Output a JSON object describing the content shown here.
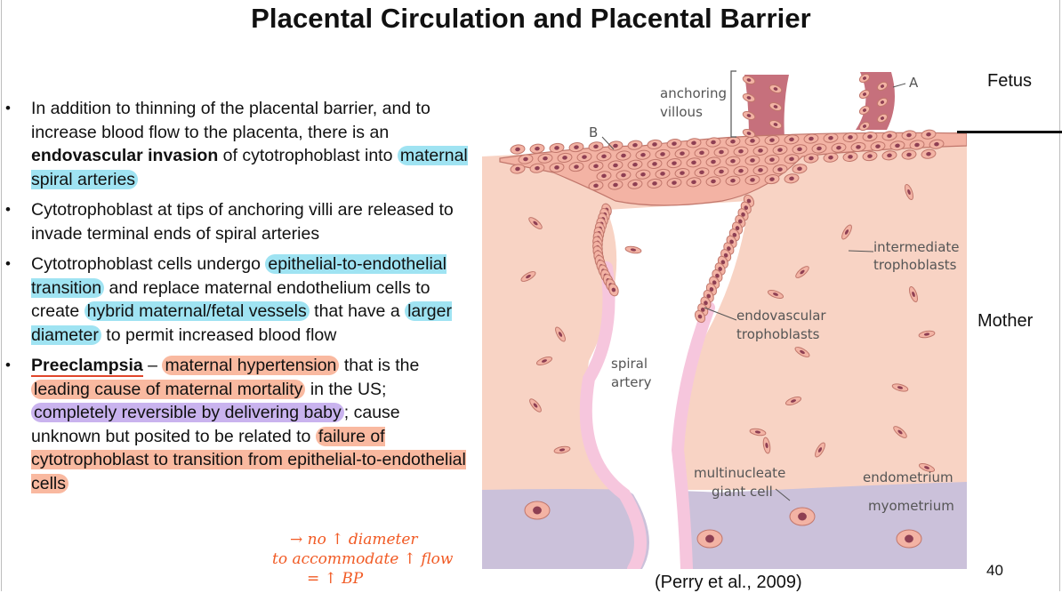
{
  "title": "Placental Circulation and Placental Barrier",
  "bullets": {
    "b1": {
      "t1": "In addition to thinning of the placental barrier, and to increase blood flow to the placenta, there is an ",
      "bold": "endovascular invasion",
      "t2": " of cytotrophoblast into ",
      "hl1": "maternal spiral arteries"
    },
    "b2": {
      "text": "Cytotrophoblast at tips of anchoring villi are released to invade terminal ends of spiral arteries"
    },
    "b3": {
      "t1": "Cytotrophoblast cells undergo ",
      "hl1": "epithelial-to-endothelial transition",
      "t2": " and replace maternal endothelium cells to create ",
      "hl2": "hybrid maternal/fetal vessels",
      "t3": " that have a ",
      "hl3": "larger diameter",
      "t4": " to permit increased blood flow"
    },
    "b4": {
      "term": "Preeclampsia",
      "t1": " – ",
      "hl1": "maternal hypertension",
      "t2": " that is the ",
      "hl2": "leading cause of maternal mortality",
      "t3": " in the US; ",
      "hl3": "completely reversible by delivering baby",
      "t4": "; cause unknown but posited to be related to ",
      "hl4": "failure of cytotrophoblast to transition from epithelial-to-endothelial cells"
    }
  },
  "handwriting": {
    "line1": "→ no ↑ diameter",
    "line2": "to accommodate ↑ flow",
    "line3": "= ↑ BP"
  },
  "figure": {
    "labels": {
      "anchoring": "anchoring",
      "villous": "villous",
      "a": "A",
      "b": "B",
      "intermediate": "intermediate",
      "trophoblasts": "trophoblasts",
      "endovascular": "endovascular",
      "endo_trophoblasts": "trophoblasts",
      "spiral": "spiral",
      "artery": "artery",
      "multinucleate": "multinucleate",
      "giant_cell": "giant cell",
      "endometrium": "endometrium",
      "myometrium": "myometrium"
    },
    "colors": {
      "endometrium": "#f8d3c4",
      "myometrium": "#cbc1da",
      "cell_fill": "#f3b3a4",
      "cell_edge": "#c1776c",
      "nucleus": "#8e3f53",
      "vessel_wall": "#f6c6dd"
    }
  },
  "side_labels": {
    "fetus": "Fetus",
    "mother": "Mother"
  },
  "citation": "(Perry et al., 2009)",
  "page_number": "40"
}
